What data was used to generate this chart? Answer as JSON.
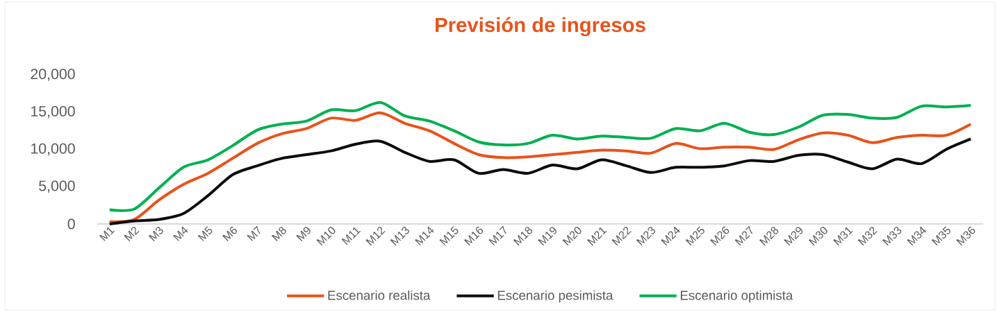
{
  "chart_data": {
    "type": "line",
    "title": "Previsión de ingresos",
    "categories": [
      "M1",
      "M2",
      "M3",
      "M4",
      "M5",
      "M6",
      "M7",
      "M8",
      "M9",
      "M10",
      "M11",
      "M12",
      "M13",
      "M14",
      "M15",
      "M16",
      "M17",
      "M18",
      "M19",
      "M20",
      "M21",
      "M22",
      "M23",
      "M24",
      "M25",
      "M26",
      "M27",
      "M28",
      "M29",
      "M30",
      "M31",
      "M32",
      "M33",
      "M34",
      "M35",
      "M36"
    ],
    "series": [
      {
        "name": "Escenario realista",
        "color": "#e8531a",
        "values": [
          300,
          600,
          3200,
          5300,
          6800,
          8800,
          10800,
          12100,
          12800,
          14200,
          13900,
          14900,
          13500,
          12500,
          10800,
          9300,
          8900,
          9000,
          9300,
          9600,
          9900,
          9800,
          9500,
          10800,
          10100,
          10300,
          10300,
          10000,
          11300,
          12200,
          11900,
          10900,
          11600,
          11900,
          11900,
          13400
        ]
      },
      {
        "name": "Escenario pesimista",
        "color": "#0d0d0d",
        "values": [
          0,
          400,
          600,
          1400,
          3800,
          6600,
          7800,
          8800,
          9300,
          9800,
          10700,
          11100,
          9600,
          8400,
          8600,
          6800,
          7300,
          6800,
          7900,
          7400,
          8600,
          7800,
          6900,
          7600,
          7600,
          7800,
          8500,
          8400,
          9200,
          9300,
          8300,
          7400,
          8700,
          8100,
          10000,
          11400
        ]
      },
      {
        "name": "Escenario optimista",
        "color": "#00b050",
        "values": [
          1900,
          2000,
          4800,
          7600,
          8600,
          10500,
          12600,
          13400,
          13800,
          15300,
          15200,
          16300,
          14500,
          13800,
          12500,
          11000,
          10600,
          10800,
          11900,
          11400,
          11800,
          11600,
          11500,
          12800,
          12500,
          13500,
          12300,
          12000,
          13000,
          14600,
          14700,
          14200,
          14300,
          15800,
          15700,
          15900
        ]
      }
    ],
    "ylim": [
      0,
      20000
    ],
    "yticks": [
      0,
      {
        "value": 5000,
        "label": "5,000"
      },
      {
        "value": 10000,
        "label": "10,000"
      },
      {
        "value": 15000,
        "label": "15,000"
      },
      {
        "value": 20000,
        "label": "20,000"
      }
    ],
    "legend": "bottom",
    "line_style": "solid",
    "marker": "none",
    "grid": false
  }
}
